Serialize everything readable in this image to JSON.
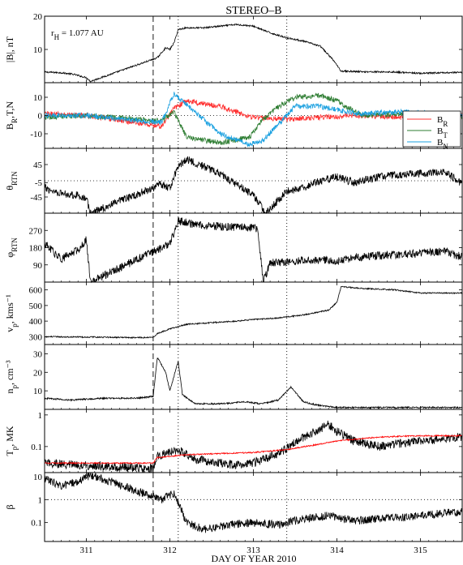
{
  "figure": {
    "title": "STEREO–B",
    "xlabel": "DAY OF YEAR 2010",
    "annotation": "r_H = 1.077 AU",
    "annotation_main": "r",
    "annotation_sub": "H",
    "annotation_rest": " = 1.077 AU"
  },
  "colors": {
    "axis": "#000000",
    "BR": "#ff3030",
    "BT": "#2e7d32",
    "BN": "#1aa0e0",
    "Tred": "#ff0000"
  },
  "chart_data": [
    {
      "type": "line",
      "panel": "B",
      "ylabel": "|B|, nT",
      "ylim": [
        0,
        20
      ],
      "yticks": [
        10,
        20
      ],
      "xlim": [
        310.5,
        315.5
      ],
      "xticks": [
        311,
        312,
        313,
        314,
        315
      ],
      "series": [
        {
          "values": [
            [
              310.5,
              3.2
            ],
            [
              310.7,
              3.0
            ],
            [
              310.85,
              2.5
            ],
            [
              311.0,
              1.5
            ],
            [
              311.05,
              0.4
            ],
            [
              311.85,
              7.5
            ],
            [
              311.9,
              9.0
            ],
            [
              311.95,
              10.5
            ],
            [
              312.0,
              10.0
            ],
            [
              312.05,
              12.0
            ],
            [
              312.1,
              16.0
            ],
            [
              312.2,
              16.5
            ],
            [
              312.4,
              16.5
            ],
            [
              312.6,
              17.0
            ],
            [
              312.8,
              17.5
            ],
            [
              313.0,
              17.0
            ],
            [
              313.2,
              15.0
            ],
            [
              313.4,
              13.5
            ],
            [
              313.6,
              12.5
            ],
            [
              313.8,
              11.0
            ],
            [
              313.95,
              7.0
            ],
            [
              314.05,
              3.5
            ],
            [
              314.3,
              3.3
            ],
            [
              314.7,
              3.2
            ],
            [
              315.0,
              2.8
            ],
            [
              315.3,
              3.0
            ],
            [
              315.5,
              3.1
            ]
          ]
        }
      ]
    },
    {
      "type": "line",
      "panel": "B_RTN",
      "ylabel": "B_R,T,N",
      "ylim": [
        -18,
        18
      ],
      "yticks": [
        -10,
        0,
        10
      ],
      "xlim": [
        310.5,
        315.5
      ],
      "legend": [
        "B_R",
        "B_T",
        "B_N"
      ],
      "legend_placement": "top-right",
      "series": [
        {
          "name": "B_R",
          "values": [
            [
              310.5,
              1
            ],
            [
              311.0,
              0
            ],
            [
              311.9,
              -6
            ],
            [
              312.05,
              4
            ],
            [
              312.2,
              8
            ],
            [
              312.6,
              5
            ],
            [
              313.0,
              -1
            ],
            [
              313.4,
              -2
            ],
            [
              313.8,
              -1
            ],
            [
              314.2,
              0
            ],
            [
              314.8,
              -1
            ],
            [
              315.5,
              0
            ]
          ]
        },
        {
          "name": "B_T",
          "values": [
            [
              310.5,
              -1
            ],
            [
              311.0,
              0
            ],
            [
              311.9,
              -3
            ],
            [
              312.05,
              2
            ],
            [
              312.2,
              -12
            ],
            [
              312.6,
              -15
            ],
            [
              312.95,
              -12
            ],
            [
              313.1,
              -3
            ],
            [
              313.3,
              5
            ],
            [
              313.5,
              10
            ],
            [
              313.8,
              11
            ],
            [
              314.0,
              8
            ],
            [
              314.3,
              0
            ],
            [
              314.8,
              1
            ],
            [
              315.5,
              -1
            ]
          ]
        },
        {
          "name": "B_N",
          "values": [
            [
              310.5,
              0
            ],
            [
              311.0,
              0
            ],
            [
              311.9,
              -4
            ],
            [
              312.05,
              12
            ],
            [
              312.2,
              6
            ],
            [
              312.6,
              -10
            ],
            [
              312.95,
              -16
            ],
            [
              313.1,
              -14
            ],
            [
              313.3,
              -5
            ],
            [
              313.5,
              5
            ],
            [
              313.8,
              5
            ],
            [
              314.0,
              3
            ],
            [
              314.3,
              1
            ],
            [
              314.8,
              2
            ],
            [
              315.5,
              0
            ]
          ]
        }
      ]
    },
    {
      "type": "line",
      "panel": "theta",
      "ylabel": "θ_RTN",
      "ylim": [
        -90,
        90
      ],
      "yticks": [
        -45,
        -5,
        45
      ],
      "xlim": [
        310.5,
        315.5
      ],
      "series": [
        {
          "values": [
            [
              310.5,
              -20
            ],
            [
              310.7,
              -35
            ],
            [
              310.9,
              -40
            ],
            [
              311.0,
              -50
            ],
            [
              311.05,
              -90
            ],
            [
              311.9,
              -10
            ],
            [
              312.0,
              -20
            ],
            [
              312.1,
              40
            ],
            [
              312.2,
              60
            ],
            [
              312.4,
              40
            ],
            [
              312.6,
              20
            ],
            [
              312.8,
              -10
            ],
            [
              313.0,
              -40
            ],
            [
              313.15,
              -90
            ],
            [
              313.4,
              -30
            ],
            [
              313.6,
              -20
            ],
            [
              313.8,
              0
            ],
            [
              314.0,
              10
            ],
            [
              314.2,
              -5
            ],
            [
              314.6,
              15
            ],
            [
              315.0,
              20
            ],
            [
              315.3,
              25
            ],
            [
              315.5,
              -10
            ]
          ]
        }
      ]
    },
    {
      "type": "line",
      "panel": "phi",
      "ylabel": "φ_RTN",
      "ylim": [
        0,
        360
      ],
      "yticks": [
        90,
        180,
        270
      ],
      "xlim": [
        310.5,
        315.5
      ],
      "series": [
        {
          "values": [
            [
              310.5,
              200
            ],
            [
              310.7,
              120
            ],
            [
              310.9,
              170
            ],
            [
              311.0,
              220
            ],
            [
              311.05,
              0
            ],
            [
              311.9,
              180
            ],
            [
              312.0,
              200
            ],
            [
              312.1,
              320
            ],
            [
              312.3,
              300
            ],
            [
              312.6,
              290
            ],
            [
              312.9,
              285
            ],
            [
              313.05,
              280
            ],
            [
              313.12,
              0
            ],
            [
              313.2,
              100
            ],
            [
              313.5,
              110
            ],
            [
              313.8,
              115
            ],
            [
              314.0,
              110
            ],
            [
              314.2,
              130
            ],
            [
              314.6,
              140
            ],
            [
              315.0,
              150
            ],
            [
              315.3,
              160
            ],
            [
              315.5,
              130
            ]
          ]
        }
      ]
    },
    {
      "type": "line",
      "panel": "v",
      "ylabel": "v_p, kms⁻¹",
      "ylim": [
        250,
        650
      ],
      "yticks": [
        300,
        400,
        500,
        600
      ],
      "xlim": [
        310.5,
        315.5
      ],
      "series": [
        {
          "values": [
            [
              310.5,
              300
            ],
            [
              311.0,
              298
            ],
            [
              311.5,
              295
            ],
            [
              311.8,
              295
            ],
            [
              311.85,
              320
            ],
            [
              312.0,
              350
            ],
            [
              312.2,
              380
            ],
            [
              312.5,
              390
            ],
            [
              312.8,
              400
            ],
            [
              313.0,
              410
            ],
            [
              313.3,
              420
            ],
            [
              313.6,
              440
            ],
            [
              313.9,
              470
            ],
            [
              314.0,
              520
            ],
            [
              314.05,
              620
            ],
            [
              314.3,
              610
            ],
            [
              314.7,
              600
            ],
            [
              315.0,
              580
            ],
            [
              315.5,
              580
            ]
          ]
        }
      ]
    },
    {
      "type": "line",
      "panel": "n",
      "ylabel": "n_p, cm⁻³",
      "ylim": [
        0,
        35
      ],
      "yticks": [
        10,
        20,
        30
      ],
      "xlim": [
        310.5,
        315.5
      ],
      "series": [
        {
          "values": [
            [
              310.5,
              6
            ],
            [
              310.8,
              5
            ],
            [
              311.2,
              6
            ],
            [
              311.6,
              6
            ],
            [
              311.8,
              7
            ],
            [
              311.85,
              28
            ],
            [
              311.95,
              20
            ],
            [
              312.0,
              10
            ],
            [
              312.1,
              26
            ],
            [
              312.15,
              8
            ],
            [
              312.3,
              3
            ],
            [
              312.6,
              3
            ],
            [
              312.9,
              4
            ],
            [
              313.1,
              3
            ],
            [
              313.3,
              5
            ],
            [
              313.45,
              12
            ],
            [
              313.6,
              4
            ],
            [
              313.8,
              2
            ],
            [
              314.0,
              1
            ],
            [
              314.5,
              1
            ],
            [
              315.0,
              1
            ],
            [
              315.5,
              1
            ]
          ]
        }
      ]
    },
    {
      "type": "line",
      "panel": "T",
      "ylabel": "T_p, MK",
      "yscale": "log",
      "ylim": [
        0.015,
        1.5
      ],
      "yticks": [
        0.1,
        1
      ],
      "xlim": [
        310.5,
        315.5
      ],
      "series": [
        {
          "values": [
            [
              310.5,
              0.03
            ],
            [
              311.0,
              0.025
            ],
            [
              311.5,
              0.022
            ],
            [
              311.8,
              0.02
            ],
            [
              311.85,
              0.05
            ],
            [
              312.0,
              0.07
            ],
            [
              312.1,
              0.08
            ],
            [
              312.3,
              0.04
            ],
            [
              312.6,
              0.03
            ],
            [
              312.8,
              0.025
            ],
            [
              313.0,
              0.03
            ],
            [
              313.3,
              0.06
            ],
            [
              313.6,
              0.2
            ],
            [
              313.9,
              0.5
            ],
            [
              314.0,
              0.3
            ],
            [
              314.2,
              0.15
            ],
            [
              314.5,
              0.1
            ],
            [
              315.0,
              0.15
            ],
            [
              315.5,
              0.2
            ]
          ]
        },
        {
          "values": [
            [
              310.5,
              0.03
            ],
            [
              311.0,
              0.03
            ],
            [
              311.8,
              0.03
            ],
            [
              311.85,
              0.045
            ],
            [
              312.2,
              0.055
            ],
            [
              312.6,
              0.06
            ],
            [
              313.0,
              0.065
            ],
            [
              313.4,
              0.08
            ],
            [
              313.8,
              0.12
            ],
            [
              314.0,
              0.15
            ],
            [
              314.5,
              0.2
            ],
            [
              315.0,
              0.22
            ],
            [
              315.5,
              0.22
            ]
          ]
        }
      ]
    },
    {
      "type": "line",
      "panel": "beta",
      "ylabel": "β",
      "yscale": "log",
      "ylim": [
        0.015,
        15
      ],
      "yticks": [
        0.1,
        1,
        10
      ],
      "xlim": [
        310.5,
        315.5
      ],
      "series": [
        {
          "values": [
            [
              310.5,
              8
            ],
            [
              310.7,
              4
            ],
            [
              310.9,
              6
            ],
            [
              311.05,
              12
            ],
            [
              311.9,
              1
            ],
            [
              312.05,
              2
            ],
            [
              312.2,
              0.1
            ],
            [
              312.4,
              0.05
            ],
            [
              312.7,
              0.08
            ],
            [
              313.0,
              0.1
            ],
            [
              313.3,
              0.08
            ],
            [
              313.6,
              0.15
            ],
            [
              313.9,
              0.2
            ],
            [
              314.2,
              0.12
            ],
            [
              314.6,
              0.15
            ],
            [
              315.0,
              0.2
            ],
            [
              315.5,
              0.3
            ]
          ]
        }
      ]
    }
  ],
  "markers": [
    {
      "day": 311.8,
      "style": "dashed"
    },
    {
      "day": 312.1,
      "style": "dotted"
    },
    {
      "day": 313.4,
      "style": "dotted"
    }
  ]
}
